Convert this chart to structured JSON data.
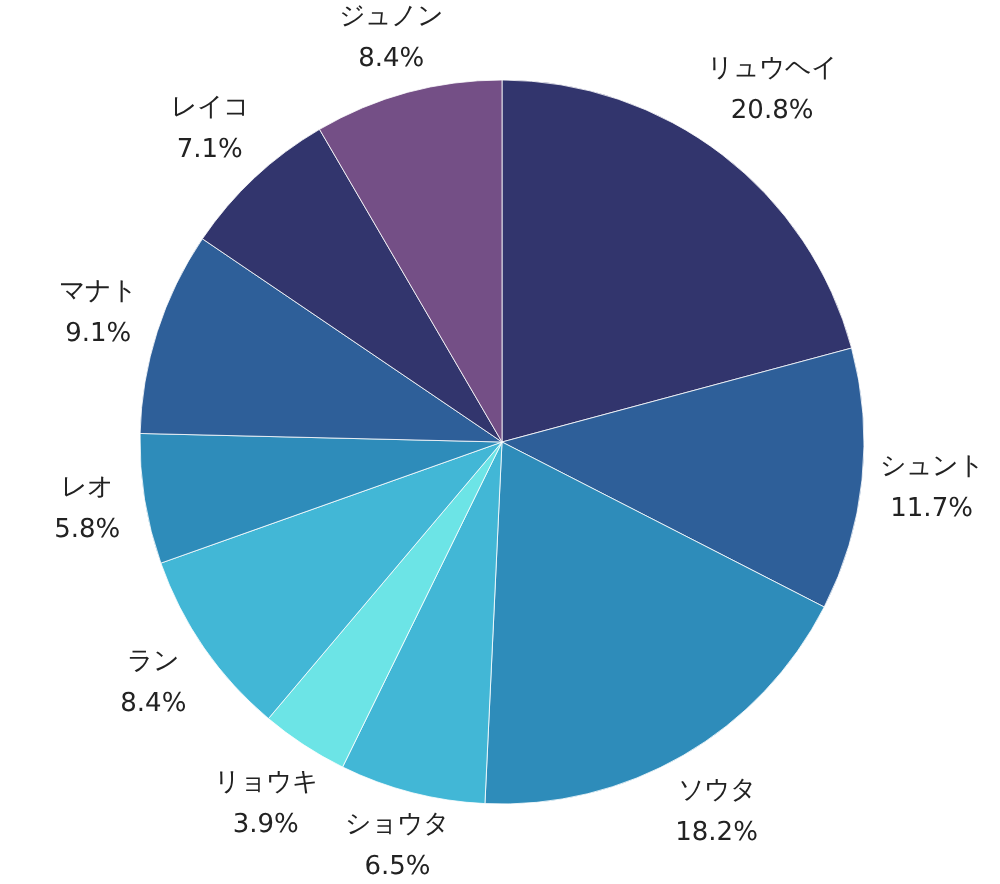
{
  "chart_data": {
    "type": "pie",
    "categories": [
      "リュウヘイ",
      "シュント",
      "ソウタ",
      "ショウタ",
      "リョウキ",
      "ラン",
      "レオ",
      "マナト",
      "レイコ",
      "ジュノン"
    ],
    "values": [
      20.8,
      11.7,
      18.2,
      6.5,
      3.9,
      8.4,
      5.8,
      9.1,
      7.1,
      8.4
    ],
    "value_labels": [
      "20.8%",
      "11.7%",
      "18.2%",
      "6.5%",
      "3.9%",
      "8.4%",
      "5.8%",
      "9.1%",
      "7.1%",
      "8.4%"
    ],
    "colors": [
      "#32356d",
      "#2e5f99",
      "#2e8cba",
      "#42b7d6",
      "#6ce4e6",
      "#42b7d6",
      "#2e8cba",
      "#2e5f99",
      "#32356d",
      "#744f86"
    ]
  }
}
